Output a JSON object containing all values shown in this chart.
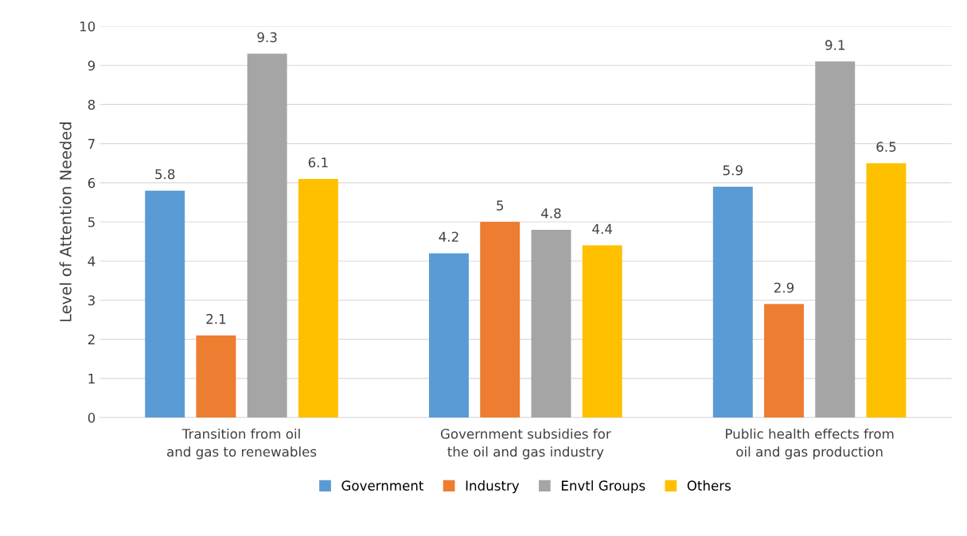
{
  "chart_data": {
    "type": "bar",
    "ylabel": "Level of Attention Needed",
    "categories": [
      "Transition from oil and gas to renewables",
      "Government subsidies for the oil and gas industry",
      "Public health effects from oil and gas production"
    ],
    "series": [
      {
        "name": "Government",
        "color": "#5b9bd5",
        "values": [
          5.8,
          4.2,
          5.9
        ]
      },
      {
        "name": "Industry",
        "color": "#ed7d31",
        "values": [
          2.1,
          5,
          2.9
        ]
      },
      {
        "name": "Envtl Groups",
        "color": "#a5a5a5",
        "values": [
          9.3,
          4.8,
          9.1
        ]
      },
      {
        "name": "Others",
        "color": "#ffc000",
        "values": [
          6.1,
          4.4,
          6.5
        ]
      }
    ],
    "ylim": [
      0,
      10
    ],
    "yticks": [
      0,
      1,
      2,
      3,
      4,
      5,
      6,
      7,
      8,
      9,
      10
    ],
    "grid": "y",
    "legend": "bottom",
    "data_labels": true
  }
}
